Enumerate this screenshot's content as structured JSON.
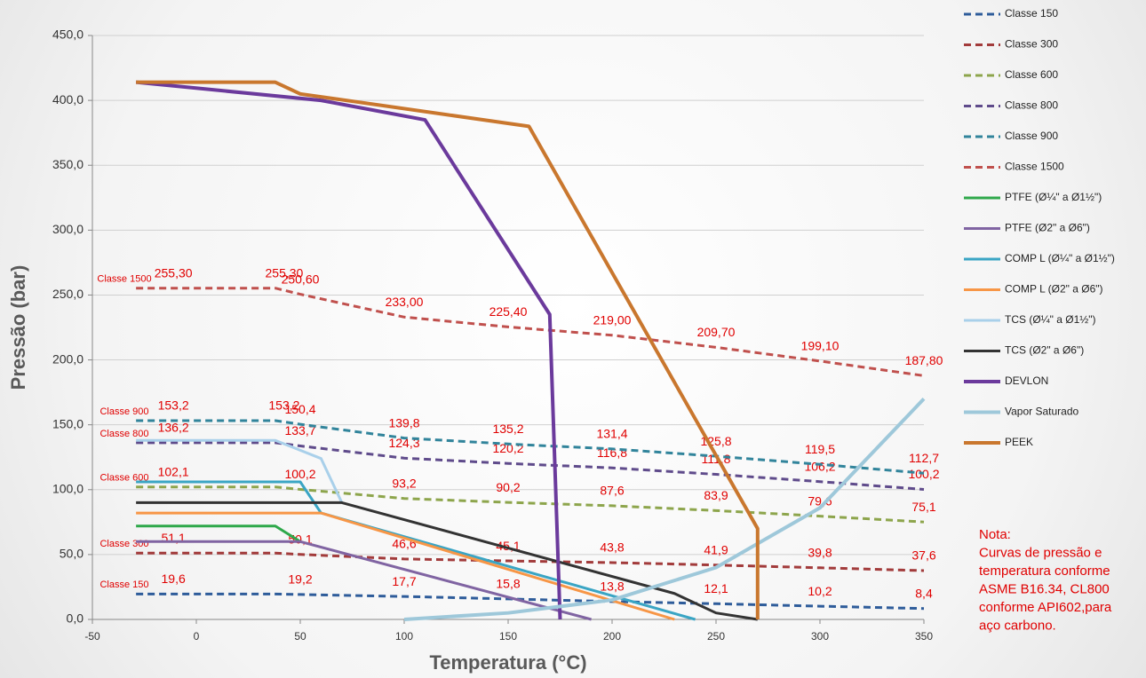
{
  "chart_data": {
    "type": "line",
    "xlabel": "Temperatura (°C)",
    "ylabel": "Pressão (bar)",
    "xlim": [
      -50,
      350
    ],
    "xticks": [
      -50,
      0,
      50,
      100,
      150,
      200,
      250,
      300,
      350
    ],
    "ylim": [
      0,
      450
    ],
    "yticks": [
      {
        "value": 0,
        "label": "0,0"
      },
      {
        "value": 50,
        "label": "50,0"
      },
      {
        "value": 100,
        "label": "100,0"
      },
      {
        "value": 150,
        "label": "150,0"
      },
      {
        "value": 200,
        "label": "200,0"
      },
      {
        "value": 250,
        "label": "250,0"
      },
      {
        "value": 300,
        "label": "300,0"
      },
      {
        "value": 350,
        "label": "350,0"
      },
      {
        "value": 400,
        "label": "400,0"
      },
      {
        "value": 450,
        "label": "450,0"
      }
    ],
    "grid": true,
    "legend": "right",
    "series": [
      {
        "name": "Classe 150",
        "color": "#2e5c9a",
        "dash": true,
        "line_width": 3,
        "x": [
          -29,
          38,
          50,
          100,
          150,
          200,
          250,
          300,
          350
        ],
        "values": [
          19.6,
          19.6,
          19.2,
          17.7,
          15.8,
          13.8,
          12.1,
          10.2,
          8.4
        ],
        "value_labels": [
          "19,6",
          null,
          "19,2",
          "17,7",
          "15,8",
          "13,8",
          "12,1",
          "10,2",
          "8,4"
        ]
      },
      {
        "name": "Classe 300",
        "color": "#a23b3b",
        "dash": true,
        "line_width": 3,
        "x": [
          -29,
          38,
          50,
          100,
          150,
          200,
          250,
          300,
          350
        ],
        "values": [
          51.1,
          51.1,
          50.1,
          46.6,
          45.1,
          43.8,
          41.9,
          39.8,
          37.6
        ],
        "value_labels": [
          "51,1",
          null,
          "50,1",
          "46,6",
          "45,1",
          "43,8",
          "41,9",
          "39,8",
          "37,6"
        ]
      },
      {
        "name": "Classe 600",
        "color": "#8da54c",
        "dash": true,
        "line_width": 3,
        "x": [
          -29,
          38,
          50,
          100,
          150,
          200,
          250,
          300,
          350
        ],
        "values": [
          102.1,
          102.1,
          100.2,
          93.2,
          90.2,
          87.6,
          83.9,
          79.6,
          75.1
        ],
        "value_labels": [
          "102,1",
          null,
          "100,2",
          "93,2",
          "90,2",
          "87,6",
          "83,9",
          "79,6",
          "75,1"
        ]
      },
      {
        "name": "Classe 800",
        "color": "#5f4b8b",
        "dash": true,
        "line_width": 3,
        "x": [
          -29,
          38,
          50,
          100,
          150,
          200,
          250,
          300,
          350
        ],
        "values": [
          136.2,
          136.2,
          133.7,
          124.3,
          120.2,
          116.8,
          111.8,
          106.2,
          100.2
        ],
        "value_labels": [
          "136,2",
          null,
          "133,7",
          "124,3",
          "120,2",
          "116,8",
          "111,8",
          "106,2",
          "100,2"
        ]
      },
      {
        "name": "Classe 900",
        "color": "#31849b",
        "dash": true,
        "line_width": 3,
        "x": [
          -29,
          38,
          50,
          100,
          150,
          200,
          250,
          300,
          350
        ],
        "values": [
          153.2,
          153.2,
          150.4,
          139.8,
          135.2,
          131.4,
          125.8,
          119.5,
          112.7
        ],
        "value_labels": [
          "153,2",
          "153,2",
          "150,4",
          "139,8",
          "135,2",
          "131,4",
          "125,8",
          "119,5",
          "112,7"
        ]
      },
      {
        "name": "Classe 1500",
        "color": "#c0504d",
        "dash": true,
        "line_width": 3,
        "x": [
          -29,
          38,
          50,
          100,
          150,
          200,
          250,
          300,
          350
        ],
        "values": [
          255.3,
          255.3,
          250.6,
          233.0,
          225.4,
          219.0,
          209.7,
          199.1,
          187.8
        ],
        "value_labels": [
          "255,30",
          "255,30",
          "250,60",
          "233,00",
          "225,40",
          "219,00",
          "209,70",
          "199,10",
          "187,80"
        ]
      },
      {
        "name": "PTFE (Ø¼\" a Ø1½\")",
        "color": "#2ea84a",
        "line_width": 3,
        "x": [
          -29,
          38,
          50
        ],
        "values": [
          72,
          72,
          60
        ]
      },
      {
        "name": "PTFE (Ø2\" a Ø6\")",
        "color": "#8064a2",
        "line_width": 3,
        "x": [
          -29,
          50,
          190
        ],
        "values": [
          60,
          60,
          0
        ]
      },
      {
        "name": "COMP L (Ø¼\" a Ø1½\")",
        "color": "#3aa5c4",
        "line_width": 3,
        "x": [
          -29,
          50,
          60,
          240
        ],
        "values": [
          106,
          106,
          82,
          0
        ]
      },
      {
        "name": "COMP L (Ø2\" a Ø6\")",
        "color": "#f79646",
        "line_width": 3,
        "x": [
          -29,
          60,
          230
        ],
        "values": [
          82,
          82,
          0
        ]
      },
      {
        "name": "TCS (Ø¼\" a Ø1½\")",
        "color": "#a9d0ea",
        "line_width": 3,
        "x": [
          -29,
          38,
          60,
          70
        ],
        "values": [
          138,
          138,
          124,
          90
        ]
      },
      {
        "name": "TCS (Ø2\" a Ø6\")",
        "color": "#333333",
        "line_width": 3,
        "x": [
          -29,
          70,
          230,
          250,
          270
        ],
        "values": [
          90,
          90,
          20,
          5,
          0
        ]
      },
      {
        "name": "DEVLON",
        "color": "#6b3a9c",
        "line_width": 4,
        "x": [
          -29,
          60,
          110,
          170,
          175
        ],
        "values": [
          414,
          400,
          385,
          235,
          0
        ]
      },
      {
        "name": "Vapor Saturado",
        "color": "#9ec8da",
        "line_width": 4,
        "x": [
          100,
          150,
          200,
          250,
          300,
          350
        ],
        "values": [
          0,
          5,
          15,
          40,
          86,
          170
        ]
      },
      {
        "name": "PEEK",
        "color": "#c9772e",
        "line_width": 4,
        "x": [
          -29,
          38,
          50,
          160,
          270,
          270
        ],
        "values": [
          414,
          414,
          405,
          380,
          70,
          0
        ]
      }
    ],
    "note": [
      "Nota:",
      "Curvas de pressão e",
      "temperatura conforme",
      "ASME B16.34, CL800",
      "conforme API602,para",
      "aço carbono."
    ]
  }
}
